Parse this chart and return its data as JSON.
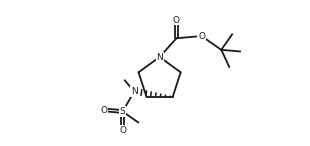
{
  "background": "#ffffff",
  "line_color": "#1a1a1a",
  "lw": 1.3,
  "figsize": [
    3.1,
    1.46
  ],
  "dpi": 100,
  "xlim": [
    0,
    10
  ],
  "ylim": [
    0,
    4.7
  ]
}
